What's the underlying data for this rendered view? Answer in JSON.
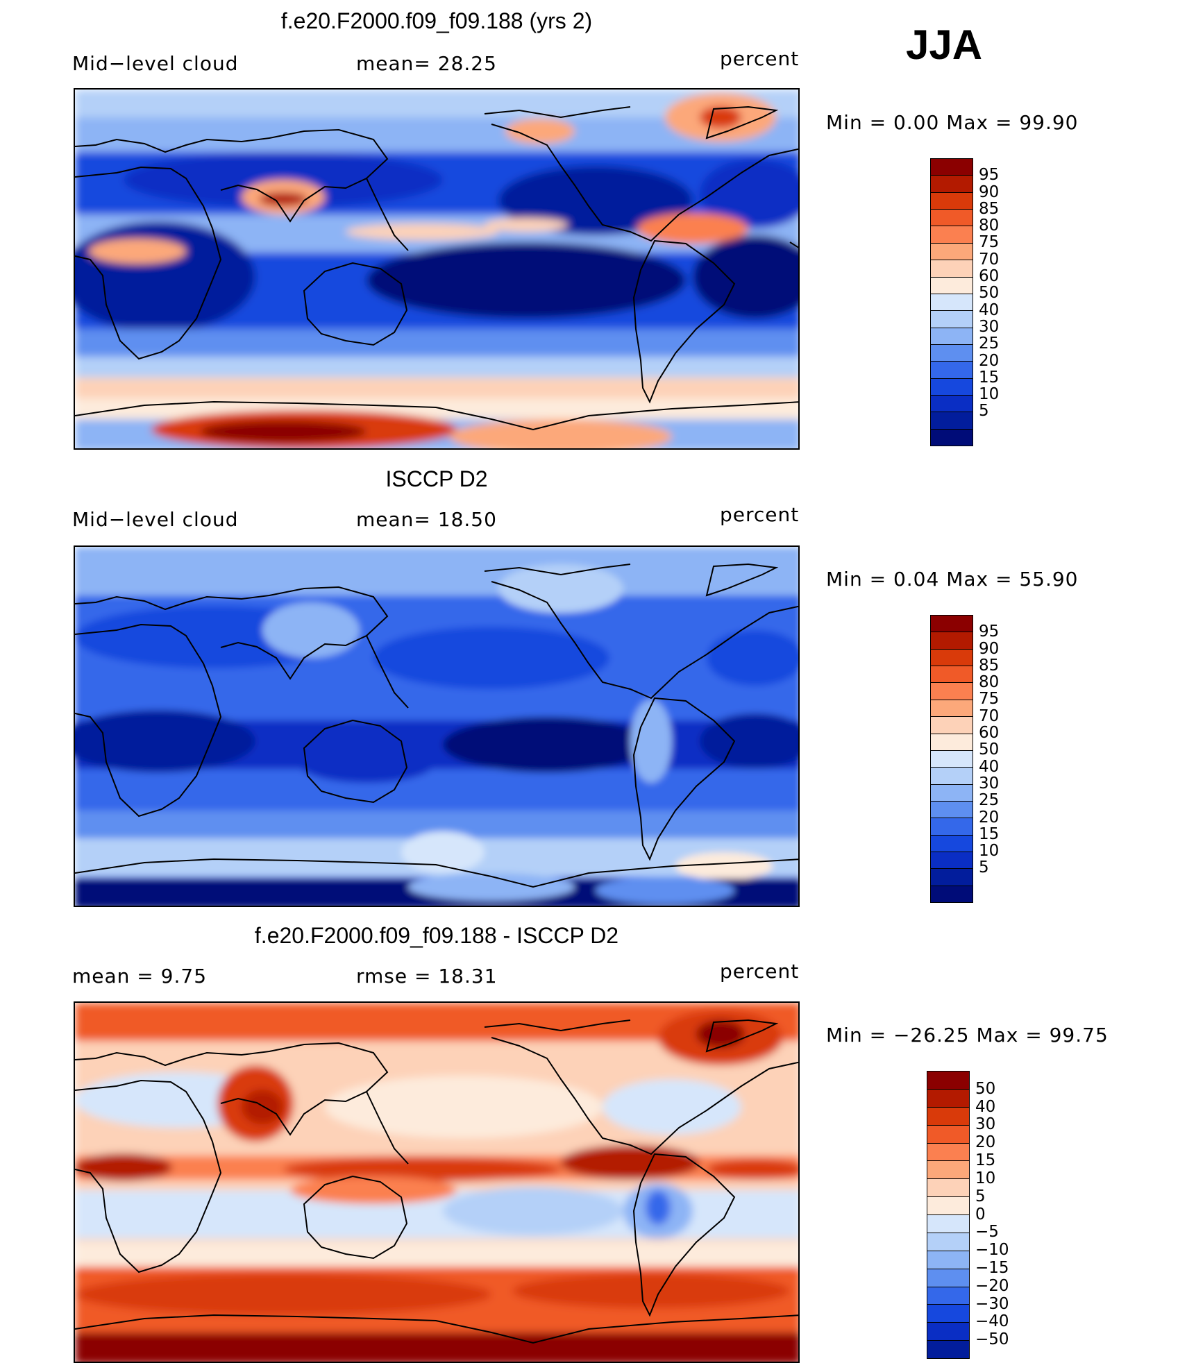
{
  "season": "JJA",
  "panels": [
    {
      "title": "f.e20.F2000.f09_f09.188 (yrs 2)",
      "left_label": "Mid−level  cloud",
      "center_label": "mean=   28.25",
      "right_label": "percent",
      "minmax": "Min  =      0.00  Max  =     99.90",
      "field": "model",
      "colorbar": {
        "colors": [
          "#8b0000",
          "#b31a00",
          "#d93a0a",
          "#f05a28",
          "#fb8050",
          "#fca87a",
          "#fdd2b8",
          "#fdebdc",
          "#d6e6fb",
          "#b4d0f8",
          "#8db4f5",
          "#5e8ff0",
          "#3468ea",
          "#1648de",
          "#0a2ec4",
          "#021d9c",
          "#000c78"
        ],
        "labels": [
          "95",
          "90",
          "85",
          "80",
          "75",
          "70",
          "60",
          "50",
          "40",
          "30",
          "25",
          "20",
          "15",
          "10",
          "5"
        ]
      }
    },
    {
      "title": "ISCCP D2",
      "left_label": "Mid−level  cloud",
      "center_label": "mean=   18.50",
      "right_label": "percent",
      "minmax": "Min  =      0.04  Max  =     55.90",
      "field": "obs",
      "colorbar": {
        "colors": [
          "#8b0000",
          "#b31a00",
          "#d93a0a",
          "#f05a28",
          "#fb8050",
          "#fca87a",
          "#fdd2b8",
          "#fdebdc",
          "#d6e6fb",
          "#b4d0f8",
          "#8db4f5",
          "#5e8ff0",
          "#3468ea",
          "#1648de",
          "#0a2ec4",
          "#021d9c",
          "#000c78"
        ],
        "labels": [
          "95",
          "90",
          "85",
          "80",
          "75",
          "70",
          "60",
          "50",
          "40",
          "30",
          "25",
          "20",
          "15",
          "10",
          "5"
        ]
      }
    },
    {
      "title": "f.e20.F2000.f09_f09.188 - ISCCP D2",
      "left_label": "mean  =     9.75",
      "center_label": "rmse  =    18.31",
      "right_label": "percent",
      "minmax": "Min  =  −26.25  Max  =     99.75",
      "field": "diff",
      "colorbar": {
        "colors": [
          "#8b0000",
          "#b31a00",
          "#d93a0a",
          "#f05a28",
          "#fb8050",
          "#fca87a",
          "#fdd2b8",
          "#fdebdc",
          "#d6e6fb",
          "#b4d0f8",
          "#8db4f5",
          "#5e8ff0",
          "#3468ea",
          "#1648de",
          "#0a2ec4",
          "#021d9c"
        ],
        "labels": [
          "50",
          "40",
          "30",
          "20",
          "15",
          "10",
          "5",
          "0",
          "−5",
          "−10",
          "−15",
          "−20",
          "−30",
          "−40",
          "−50"
        ]
      }
    }
  ]
}
